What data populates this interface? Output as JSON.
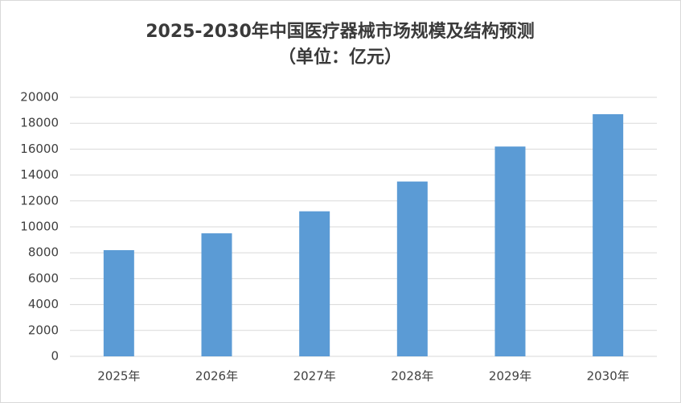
{
  "chart_data": {
    "type": "bar",
    "title": "2025-2030年中国医疗器械市场规模及结构预测",
    "subtitle": "（单位：亿元）",
    "categories": [
      "2025年",
      "2026年",
      "2027年",
      "2028年",
      "2029年",
      "2030年"
    ],
    "values": [
      8200,
      9500,
      11200,
      13500,
      16200,
      18700
    ],
    "color": "#5b9bd5",
    "ylim": [
      0,
      20000
    ],
    "yticks": [
      0,
      2000,
      4000,
      6000,
      8000,
      10000,
      12000,
      14000,
      16000,
      18000,
      20000
    ],
    "grid": true
  }
}
